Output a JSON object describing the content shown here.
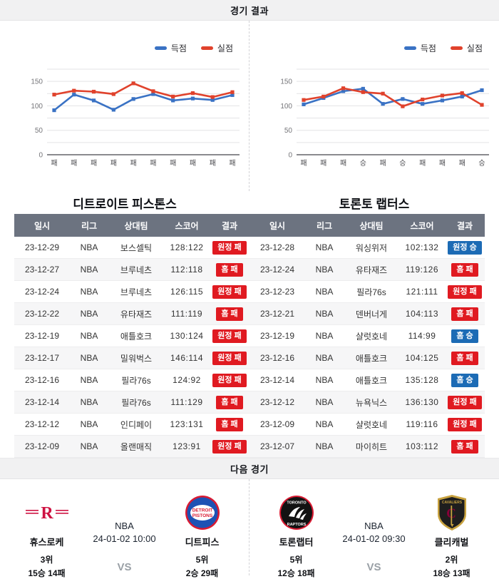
{
  "sections": {
    "results_title": "경기 결과",
    "next_title": "다음 경기"
  },
  "legend": {
    "scored_label": "득점",
    "allowed_label": "실점"
  },
  "colors": {
    "scored_line": "#3a72c4",
    "allowed_line": "#e0422c",
    "win_badge": "#1c6bb5",
    "loss_badge": "#e01a21",
    "table_header_bg": "#6c7380"
  },
  "chart_data": [
    {
      "type": "line",
      "team": "디트로이트 피스톤스",
      "categories": [
        "패",
        "패",
        "패",
        "패",
        "패",
        "패",
        "패",
        "패",
        "패",
        "패"
      ],
      "series": [
        {
          "name": "득점",
          "values": [
            91,
            123,
            111,
            92,
            114,
            124,
            111,
            115,
            112,
            122
          ]
        },
        {
          "name": "실점",
          "values": [
            123,
            131,
            129,
            124,
            146,
            130,
            119,
            126,
            118,
            128
          ]
        }
      ],
      "ylim": [
        0,
        175
      ],
      "yticks": [
        0,
        50,
        100,
        150
      ],
      "grid_step": 25,
      "legend_position": "top-right",
      "xlabel": "",
      "ylabel": ""
    },
    {
      "type": "line",
      "team": "토론토 랩터스",
      "categories": [
        "패",
        "패",
        "패",
        "승",
        "패",
        "승",
        "패",
        "패",
        "패",
        "승"
      ],
      "series": [
        {
          "name": "득점",
          "values": [
            103,
            116,
            130,
            135,
            104,
            114,
            104,
            111,
            119,
            132
          ]
        },
        {
          "name": "실점",
          "values": [
            112,
            119,
            136,
            128,
            125,
            99,
            113,
            121,
            126,
            102
          ]
        }
      ],
      "ylim": [
        0,
        175
      ],
      "yticks": [
        0,
        50,
        100,
        150
      ],
      "grid_step": 25,
      "legend_position": "top-right",
      "xlabel": "",
      "ylabel": ""
    }
  ],
  "teams": [
    {
      "name": "디트로이트 피스톤스",
      "table": {
        "headers": [
          "일시",
          "리그",
          "상대팀",
          "스코어",
          "결과"
        ],
        "rows": [
          {
            "date": "23-12-29",
            "league": "NBA",
            "opponent": "보스셀틱",
            "score": "128:122",
            "result": "원정 패",
            "result_type": "loss"
          },
          {
            "date": "23-12-27",
            "league": "NBA",
            "opponent": "브루네츠",
            "score": "112:118",
            "result": "홈 패",
            "result_type": "loss"
          },
          {
            "date": "23-12-24",
            "league": "NBA",
            "opponent": "브루네츠",
            "score": "126:115",
            "result": "원정 패",
            "result_type": "loss"
          },
          {
            "date": "23-12-22",
            "league": "NBA",
            "opponent": "유타재즈",
            "score": "111:119",
            "result": "홈 패",
            "result_type": "loss"
          },
          {
            "date": "23-12-19",
            "league": "NBA",
            "opponent": "애틀호크",
            "score": "130:124",
            "result": "원정 패",
            "result_type": "loss"
          },
          {
            "date": "23-12-17",
            "league": "NBA",
            "opponent": "밀워벅스",
            "score": "146:114",
            "result": "원정 패",
            "result_type": "loss"
          },
          {
            "date": "23-12-16",
            "league": "NBA",
            "opponent": "필라76s",
            "score": "124:92",
            "result": "원정 패",
            "result_type": "loss"
          },
          {
            "date": "23-12-14",
            "league": "NBA",
            "opponent": "필라76s",
            "score": "111:129",
            "result": "홈 패",
            "result_type": "loss"
          },
          {
            "date": "23-12-12",
            "league": "NBA",
            "opponent": "인디페이",
            "score": "123:131",
            "result": "홈 패",
            "result_type": "loss"
          },
          {
            "date": "23-12-09",
            "league": "NBA",
            "opponent": "올랜매직",
            "score": "123:91",
            "result": "원정 패",
            "result_type": "loss"
          }
        ]
      }
    },
    {
      "name": "토론토 랩터스",
      "table": {
        "headers": [
          "일시",
          "리그",
          "상대팀",
          "스코어",
          "결과"
        ],
        "rows": [
          {
            "date": "23-12-28",
            "league": "NBA",
            "opponent": "워싱위저",
            "score": "102:132",
            "result": "원정 승",
            "result_type": "win"
          },
          {
            "date": "23-12-24",
            "league": "NBA",
            "opponent": "유타재즈",
            "score": "119:126",
            "result": "홈 패",
            "result_type": "loss"
          },
          {
            "date": "23-12-23",
            "league": "NBA",
            "opponent": "필라76s",
            "score": "121:111",
            "result": "원정 패",
            "result_type": "loss"
          },
          {
            "date": "23-12-21",
            "league": "NBA",
            "opponent": "덴버너게",
            "score": "104:113",
            "result": "홈 패",
            "result_type": "loss"
          },
          {
            "date": "23-12-19",
            "league": "NBA",
            "opponent": "샬럿호네",
            "score": "114:99",
            "result": "홈 승",
            "result_type": "win"
          },
          {
            "date": "23-12-16",
            "league": "NBA",
            "opponent": "애틀호크",
            "score": "104:125",
            "result": "홈 패",
            "result_type": "loss"
          },
          {
            "date": "23-12-14",
            "league": "NBA",
            "opponent": "애틀호크",
            "score": "135:128",
            "result": "홈 승",
            "result_type": "win"
          },
          {
            "date": "23-12-12",
            "league": "NBA",
            "opponent": "뉴욕닉스",
            "score": "136:130",
            "result": "원정 패",
            "result_type": "loss"
          },
          {
            "date": "23-12-09",
            "league": "NBA",
            "opponent": "샬럿호네",
            "score": "119:116",
            "result": "원정 패",
            "result_type": "loss"
          },
          {
            "date": "23-12-07",
            "league": "NBA",
            "opponent": "마이히트",
            "score": "103:112",
            "result": "홈 패",
            "result_type": "loss"
          }
        ]
      }
    }
  ],
  "next_games": [
    {
      "league": "NBA",
      "datetime": "24-01-02 10:00",
      "vs_label": "VS",
      "left": {
        "name": "휴스로케",
        "rank": "3위",
        "record": "15승 14패",
        "logo": "houston-rockets-logo"
      },
      "right": {
        "name": "디트피스",
        "rank": "5위",
        "record": "2승 29패",
        "logo": "detroit-pistons-logo"
      }
    },
    {
      "league": "NBA",
      "datetime": "24-01-02 09:30",
      "vs_label": "VS",
      "left": {
        "name": "토론랩터",
        "rank": "5위",
        "record": "12승 18패",
        "logo": "toronto-raptors-logo"
      },
      "right": {
        "name": "클리캐벌",
        "rank": "2위",
        "record": "18승 13패",
        "logo": "cleveland-cavaliers-logo"
      }
    }
  ]
}
